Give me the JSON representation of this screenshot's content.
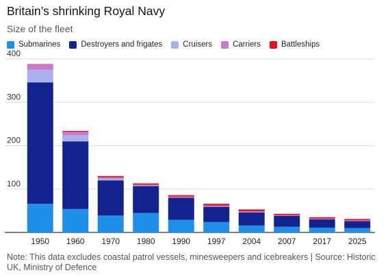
{
  "chart_data": {
    "type": "bar",
    "stacked": true,
    "title": "Britain’s shrinking Royal Navy",
    "subtitle": "Size of the fleet",
    "categories": [
      "1950",
      "1960",
      "1970",
      "1980",
      "1990",
      "1997",
      "2004",
      "2007",
      "2017",
      "2025"
    ],
    "series": [
      {
        "name": "Submarines",
        "color": "#1f8fe8",
        "values": [
          66,
          54,
          39,
          45,
          29,
          24,
          16,
          13,
          11,
          10
        ]
      },
      {
        "name": "Destroyers and frigates",
        "color": "#12238f",
        "values": [
          280,
          156,
          81,
          62,
          51,
          35,
          30,
          25,
          19,
          16
        ]
      },
      {
        "name": "Cruisers",
        "color": "#a9b0ec",
        "values": [
          29,
          14,
          4,
          1,
          0,
          0,
          0,
          0,
          0,
          0
        ]
      },
      {
        "name": "Carriers",
        "color": "#c979cf",
        "values": [
          12,
          8,
          3,
          2,
          3,
          3,
          3,
          2,
          2,
          2
        ]
      },
      {
        "name": "Battleships",
        "color": "#e3121b",
        "values": [
          1,
          2,
          3,
          3,
          3,
          4,
          4,
          3,
          3,
          3
        ]
      }
    ],
    "ylim": [
      0,
      400
    ],
    "yticks": [
      0,
      100,
      200,
      300,
      400
    ],
    "grid": true,
    "legend": "top-left"
  },
  "note": "Note: This data excludes coastal patrol vessels, minesweepers and icebreakers | Source: Historic UK, Ministry of Defence"
}
